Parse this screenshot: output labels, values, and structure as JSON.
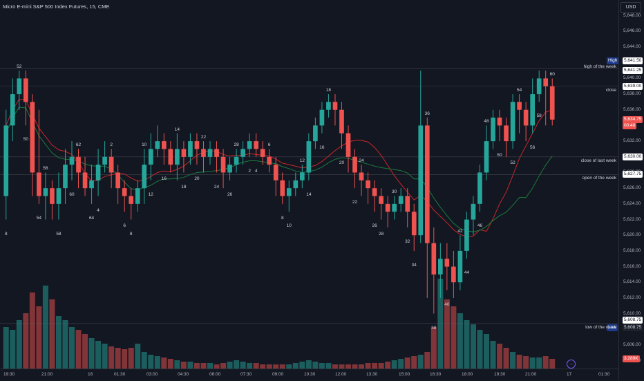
{
  "title": "Micro E-mini S&P 500 Index Futures, 15, CME",
  "currency": "USD",
  "colors": {
    "up": "#26a69a",
    "down": "#ef5350",
    "bg": "#131722",
    "ma_red": "#c62828",
    "ma_green": "#1b7a3e"
  },
  "price_axis": {
    "ticks": [
      "5,648.00",
      "5,646.00",
      "5,644.00",
      "5,640.00",
      "5,638.00",
      "5,636.00",
      "5,632.00",
      "5,628.00",
      "5,626.00",
      "5,624.00",
      "5,622.00",
      "5,620.00",
      "5,618.00",
      "5,616.00",
      "5,614.00",
      "5,612.00",
      "5,610.00",
      "5,606.00",
      "5,604.00"
    ]
  },
  "time_axis": {
    "labels": [
      "19:30",
      "21:00",
      "16",
      "01:30",
      "03:00",
      "04:30",
      "06:00",
      "07:30",
      "09:00",
      "10:30",
      "12:00",
      "13:30",
      "15:00",
      "16:30",
      "18:00",
      "19:30",
      "21:00",
      "17",
      "01:30"
    ]
  },
  "price_labels": {
    "high_tag": "High",
    "high": "5,641.50",
    "high_of_week": "5,641.25",
    "close": "5,639.00",
    "current": "5,634.75",
    "countdown": "00:48",
    "close_last_week": "5,630.00",
    "open_of_week": "5,627.75",
    "low_of_week": "5,608.75",
    "low_tag": "Low",
    "low": "5,608.75",
    "volume": "3.289K"
  },
  "annotations": {
    "high_of_week": "high of the week",
    "close": "close",
    "close_last_week": "close of last week",
    "open_of_week": "open of the week",
    "low_of_week": "low of the week"
  },
  "bar_numbers": [
    "8",
    "52",
    "50",
    "54",
    "56",
    "58",
    "60",
    "62",
    "64",
    "4",
    "2",
    "6",
    "8",
    "10",
    "12",
    "16",
    "14",
    "18",
    "20",
    "22",
    "24",
    "26",
    "28",
    "2",
    "4",
    "6",
    "8",
    "10",
    "12",
    "14",
    "16",
    "18",
    "20",
    "22",
    "24",
    "26",
    "28",
    "30",
    "32",
    "34",
    "36",
    "38",
    "40",
    "42",
    "44",
    "46",
    "48",
    "50",
    "52",
    "54",
    "56",
    "58",
    "60"
  ],
  "goto_icon": "→",
  "chart_data": {
    "type": "candlestick",
    "ylim": [
      5603,
      5650
    ],
    "candles": [
      [
        5625,
        5634,
        5622,
        5636
      ],
      [
        5634,
        5638,
        5632,
        5640
      ],
      [
        5638,
        5640,
        5636,
        5641
      ],
      [
        5640,
        5637,
        5634,
        5641
      ],
      [
        5637,
        5628,
        5625,
        5638
      ],
      [
        5628,
        5625,
        5624,
        5636
      ],
      [
        5625,
        5626,
        5622,
        5628
      ],
      [
        5626,
        5624,
        5622,
        5627
      ],
      [
        5624,
        5626,
        5622,
        5628
      ],
      [
        5626,
        5629,
        5624,
        5631
      ],
      [
        5629,
        5630,
        5627,
        5632
      ],
      [
        5630,
        5628,
        5626,
        5631
      ],
      [
        5628,
        5626,
        5625,
        5630
      ],
      [
        5626,
        5627,
        5624,
        5629
      ],
      [
        5627,
        5629,
        5625,
        5631
      ],
      [
        5629,
        5630,
        5628,
        5632
      ],
      [
        5630,
        5628,
        5626,
        5631
      ],
      [
        5628,
        5626,
        5624,
        5629
      ],
      [
        5626,
        5625,
        5623,
        5627
      ],
      [
        5625,
        5624,
        5622,
        5626
      ],
      [
        5624,
        5626,
        5623,
        5627
      ],
      [
        5626,
        5629,
        5624,
        5631
      ],
      [
        5629,
        5631,
        5627,
        5633
      ],
      [
        5631,
        5632,
        5630,
        5634
      ],
      [
        5632,
        5631,
        5629,
        5633
      ],
      [
        5631,
        5629,
        5628,
        5632
      ],
      [
        5629,
        5631,
        5627,
        5633
      ],
      [
        5631,
        5630,
        5628,
        5632
      ],
      [
        5630,
        5632,
        5629,
        5633
      ],
      [
        5632,
        5631,
        5629,
        5633
      ],
      [
        5631,
        5630,
        5628,
        5632
      ],
      [
        5630,
        5631,
        5629,
        5632
      ],
      [
        5631,
        5630,
        5628,
        5632
      ],
      [
        5630,
        5628,
        5626,
        5631
      ],
      [
        5628,
        5629,
        5627,
        5630
      ],
      [
        5629,
        5630,
        5628,
        5631
      ],
      [
        5630,
        5631,
        5629,
        5632
      ],
      [
        5631,
        5632,
        5630,
        5633
      ],
      [
        5632,
        5631,
        5630,
        5633
      ],
      [
        5631,
        5630,
        5629,
        5632
      ],
      [
        5630,
        5629,
        5628,
        5631
      ],
      [
        5629,
        5627,
        5625,
        5630
      ],
      [
        5627,
        5625,
        5624,
        5628
      ],
      [
        5625,
        5626,
        5623,
        5627
      ],
      [
        5626,
        5627,
        5625,
        5628
      ],
      [
        5627,
        5628,
        5626,
        5629
      ],
      [
        5628,
        5632,
        5627,
        5633
      ],
      [
        5632,
        5634,
        5631,
        5635
      ],
      [
        5634,
        5636,
        5633,
        5637
      ],
      [
        5636,
        5637,
        5635,
        5638
      ],
      [
        5637,
        5636,
        5634,
        5638
      ],
      [
        5636,
        5633,
        5631,
        5637
      ],
      [
        5633,
        5630,
        5628,
        5634
      ],
      [
        5630,
        5628,
        5626,
        5631
      ],
      [
        5628,
        5627,
        5625,
        5629
      ],
      [
        5627,
        5626,
        5624,
        5628
      ],
      [
        5626,
        5625,
        5623,
        5627
      ],
      [
        5625,
        5624,
        5622,
        5626
      ],
      [
        5624,
        5623,
        5621,
        5625
      ],
      [
        5623,
        5624,
        5622,
        5625
      ],
      [
        5624,
        5625,
        5623,
        5626
      ],
      [
        5625,
        5623,
        5621,
        5626
      ],
      [
        5623,
        5620,
        5618,
        5624
      ],
      [
        5620,
        5634,
        5619,
        5641
      ],
      [
        5634,
        5619,
        5612,
        5635
      ],
      [
        5619,
        5615,
        5610,
        5621
      ],
      [
        5615,
        5617,
        5612,
        5619
      ],
      [
        5617,
        5616,
        5613,
        5619
      ],
      [
        5616,
        5614,
        5612,
        5618
      ],
      [
        5614,
        5618,
        5613,
        5620
      ],
      [
        5618,
        5622,
        5617,
        5623
      ],
      [
        5622,
        5624,
        5620,
        5625
      ],
      [
        5624,
        5628,
        5623,
        5629
      ],
      [
        5628,
        5632,
        5627,
        5634
      ],
      [
        5632,
        5635,
        5631,
        5636
      ],
      [
        5635,
        5634,
        5632,
        5636
      ],
      [
        5634,
        5632,
        5630,
        5635
      ],
      [
        5632,
        5637,
        5631,
        5638
      ],
      [
        5637,
        5636,
        5633,
        5638
      ],
      [
        5636,
        5634,
        5632,
        5637
      ],
      [
        5634,
        5638,
        5633,
        5640
      ],
      [
        5638,
        5640,
        5637,
        5641
      ],
      [
        5640,
        5639,
        5634,
        5641
      ],
      [
        5639,
        5634.75,
        5634,
        5640
      ]
    ],
    "volume": [
      30,
      28,
      35,
      40,
      55,
      45,
      60,
      50,
      38,
      35,
      30,
      28,
      25,
      22,
      20,
      18,
      16,
      15,
      14,
      15,
      18,
      12,
      10,
      9,
      8,
      7,
      6,
      5,
      5,
      4,
      4,
      4,
      3,
      4,
      5,
      6,
      5,
      4,
      4,
      3,
      3,
      3,
      3,
      3,
      4,
      5,
      6,
      5,
      4,
      4,
      3,
      3,
      3,
      3,
      3,
      4,
      4,
      4,
      5,
      6,
      7,
      8,
      9,
      10,
      12,
      30,
      65,
      50,
      45,
      40,
      35,
      32,
      28,
      25,
      20,
      18,
      15,
      12,
      10,
      9,
      8,
      8,
      9,
      7
    ],
    "levels": {
      "high_of_week": 5641.25,
      "close": 5639.0,
      "close_last_week": 5630.0,
      "open_of_week": 5627.75,
      "low_of_week": 5608.75
    }
  }
}
